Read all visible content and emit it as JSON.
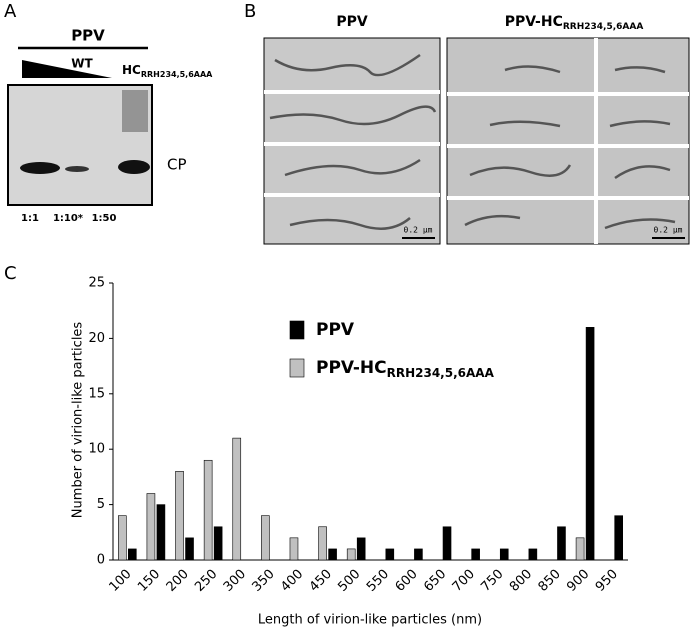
{
  "panel_a": {
    "label": "A",
    "title": "PPV",
    "wt_label": "WT",
    "mutant_label": "HC",
    "mutant_subscript": "RRH234,5,6AAA",
    "band_label": "CP",
    "dilutions": [
      "1:1",
      "1:10*",
      "1:50"
    ]
  },
  "panel_b": {
    "label": "B",
    "columns": [
      {
        "title": "PPV"
      },
      {
        "title": "PPV-HC",
        "subscript": "RRH234,5,6AAA"
      }
    ],
    "scale_bars": [
      "0.2 µm",
      "0.2 µm"
    ]
  },
  "panel_c": {
    "label": "C"
  },
  "chart_data": {
    "type": "bar",
    "x_label": "Length of virion-like particles (nm)",
    "y_label": "Number of virion-like particles",
    "categories": [
      "100",
      "150",
      "200",
      "250",
      "300",
      "350",
      "400",
      "450",
      "500",
      "550",
      "600",
      "650",
      "700",
      "750",
      "800",
      "850",
      "900",
      "950"
    ],
    "series": [
      {
        "name": "PPV",
        "color": "#000000",
        "values": [
          1,
          5,
          2,
          3,
          0,
          0,
          0,
          1,
          2,
          1,
          1,
          3,
          1,
          1,
          1,
          3,
          21,
          4
        ]
      },
      {
        "name": "PPV-HC",
        "name_subscript": "RRH234,5,6AAA",
        "color": "#c0c0c0",
        "values": [
          4,
          6,
          8,
          9,
          11,
          4,
          2,
          3,
          1,
          0,
          0,
          0,
          0,
          0,
          0,
          0,
          2,
          0
        ]
      }
    ],
    "ylim": [
      0,
      25
    ],
    "yticks": [
      0,
      5,
      10,
      15,
      20,
      25
    ],
    "grid": false,
    "legend": "upper center"
  }
}
